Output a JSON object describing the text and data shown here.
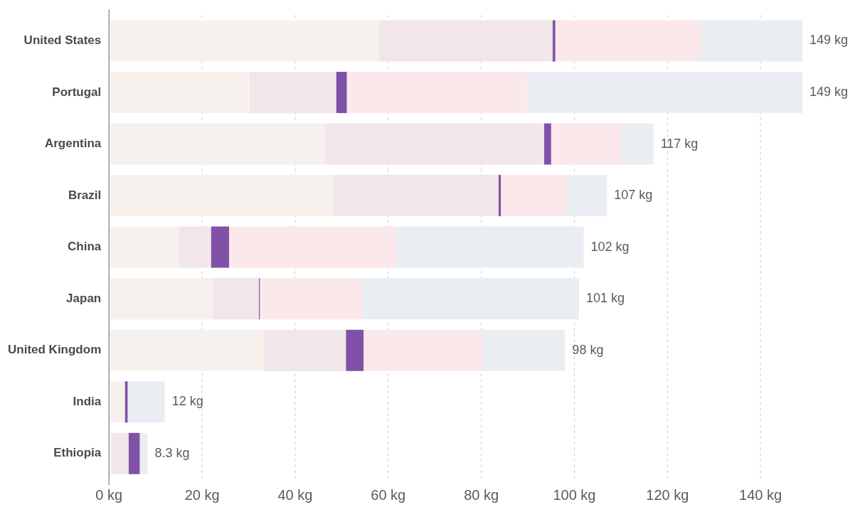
{
  "chart_data": {
    "type": "bar",
    "orientation": "horizontal",
    "stacked": true,
    "legend": false,
    "grid": "x",
    "categories": [
      "United States",
      "Portugal",
      "Argentina",
      "Brazil",
      "China",
      "Japan",
      "United Kingdom",
      "India",
      "Ethiopia"
    ],
    "series": [
      {
        "color": "#f7f1ee",
        "values": [
          58,
          30.2,
          46.3,
          48.3,
          15.1,
          22.4,
          33.2,
          3.4,
          0.5
        ]
      },
      {
        "color": "#f1e6e9",
        "values": [
          37.3,
          18.6,
          47.2,
          35.4,
          6.8,
          9.8,
          17.7,
          null,
          3.7
        ]
      },
      {
        "color": "#7f52a8",
        "values": [
          0.6,
          2.3,
          1.5,
          0.5,
          3.9,
          0.2,
          3.8,
          0.6,
          2.4
        ]
      },
      {
        "color": "#fbe8ea",
        "values": [
          31.4,
          38.8,
          15,
          14.1,
          35.9,
          22,
          25.5,
          null,
          0
        ]
      },
      {
        "color": "#eaeef3",
        "values": [
          21.7,
          59.1,
          7,
          8.7,
          40.3,
          46.6,
          17.8,
          8,
          1.7
        ]
      }
    ],
    "totals": [
      "149 kg",
      "149 kg",
      "117 kg",
      "107 kg",
      "102 kg",
      "101 kg",
      "98 kg",
      "12 kg",
      "8.3 kg"
    ],
    "xlim": [
      0,
      149
    ],
    "xticks": [
      {
        "value": 0,
        "label": "0 kg"
      },
      {
        "value": 20,
        "label": "20 kg"
      },
      {
        "value": 40,
        "label": "40 kg"
      },
      {
        "value": 60,
        "label": "60 kg"
      },
      {
        "value": 80,
        "label": "80 kg"
      },
      {
        "value": 100,
        "label": "100 kg"
      },
      {
        "value": 120,
        "label": "120 kg"
      },
      {
        "value": 140,
        "label": "140 kg"
      }
    ]
  }
}
